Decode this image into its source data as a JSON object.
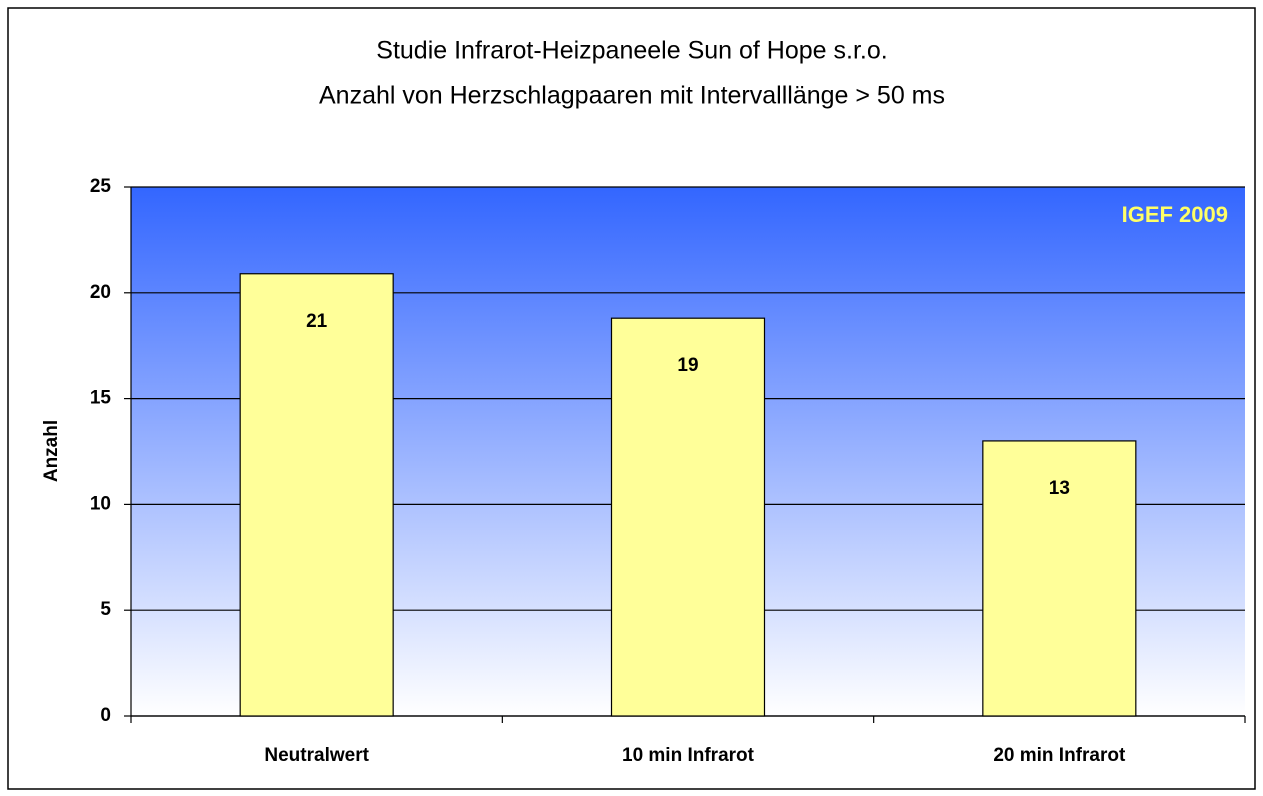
{
  "chart_data": {
    "type": "bar",
    "title": "Studie Infrarot-Heizpaneele Sun of Hope s.r.o.",
    "subtitle": "Anzahl von Herzschlagpaaren mit Intervalllänge > 50 ms",
    "y_label": "Anzahl",
    "annotation": "IGEF 2009",
    "categories": [
      "Neutralwert",
      "10 min Infrarot",
      "20 min Infrarot"
    ],
    "values": [
      20.9,
      18.8,
      13
    ],
    "value_labels": [
      "21",
      "19",
      "13"
    ],
    "color": "#ffff99",
    "ylim": [
      0,
      25
    ],
    "yticks": [
      0,
      5,
      10,
      15,
      20,
      25
    ],
    "grid": true
  }
}
